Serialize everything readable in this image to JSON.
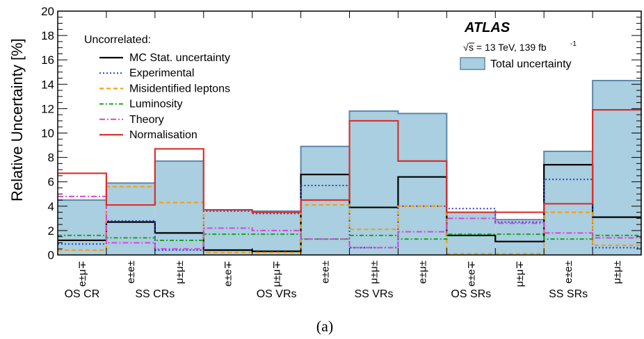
{
  "chart_data": {
    "type": "histogram",
    "ylabel": "Relative Uncertainty [%]",
    "ylim": [
      0,
      20
    ],
    "yticks": [
      "0",
      "2",
      "4",
      "6",
      "8",
      "10",
      "12",
      "14",
      "16",
      "18",
      "20"
    ],
    "bin_labels": [
      "e±μ∓",
      "e±e±",
      "μ±μ±",
      "e±e∓",
      "μ±μ∓",
      "e±e±",
      "μ±μ±",
      "e±μ±",
      "e±e∓",
      "μ±μ∓",
      "e±e±",
      "μ±μ±"
    ],
    "groups": [
      {
        "label": "OS CR",
        "bins": [
          0
        ]
      },
      {
        "label": "SS CRs",
        "bins": [
          1,
          2
        ]
      },
      {
        "label": "OS VRs",
        "bins": [
          3,
          4,
          5
        ]
      },
      {
        "label": "SS VRs",
        "bins": [
          6,
          7
        ]
      },
      {
        "label": "OS SRs",
        "bins": [
          8,
          9
        ]
      },
      {
        "label": "SS SRs",
        "bins": [
          10,
          11
        ]
      }
    ],
    "total": {
      "name": "Total uncertainty",
      "color": "#a9cfe0",
      "edge": "#5f87a8",
      "values": [
        4.5,
        5.9,
        7.7,
        3.7,
        3.6,
        8.9,
        11.8,
        11.6,
        3.5,
        2.9,
        8.5,
        14.3
      ]
    },
    "series": [
      {
        "name": "MC Stat. uncertainty",
        "color": "#000000",
        "dash": "",
        "width": 2.2,
        "values": [
          1.2,
          2.7,
          1.8,
          0.4,
          0.3,
          6.6,
          3.9,
          6.4,
          1.6,
          1.1,
          7.4,
          3.1
        ]
      },
      {
        "name": "Experimental",
        "color": "#2a3fc8",
        "dash": "2,3",
        "width": 2,
        "values": [
          0.9,
          2.8,
          0.4,
          3.6,
          3.4,
          5.7,
          0.6,
          4.0,
          3.8,
          2.7,
          6.2,
          0.6
        ]
      },
      {
        "name": "Misidentified leptons",
        "color": "#ff9900",
        "dash": "6,4",
        "width": 2,
        "values": [
          0.4,
          5.6,
          4.3,
          0.2,
          0.2,
          4.1,
          2.1,
          4.0,
          0.1,
          0.1,
          3.5,
          0.8
        ]
      },
      {
        "name": "Luminosity",
        "color": "#1fa01f",
        "dash": "6,3,2,3",
        "width": 2,
        "values": [
          1.6,
          1.4,
          1.2,
          1.7,
          1.7,
          1.3,
          1.6,
          1.3,
          1.7,
          1.7,
          1.3,
          1.6
        ]
      },
      {
        "name": "Theory",
        "color": "#d943d9",
        "dash": "8,3,2,3",
        "width": 2,
        "values": [
          4.8,
          1.0,
          0.5,
          2.2,
          2.0,
          1.3,
          0.6,
          1.9,
          3.0,
          2.6,
          1.8,
          1.4
        ]
      },
      {
        "name": "Normalisation",
        "color": "#d9302c",
        "dash": "",
        "width": 2.2,
        "values": [
          6.7,
          4.1,
          8.7,
          3.7,
          3.5,
          4.5,
          11.0,
          7.7,
          3.5,
          3.5,
          4.2,
          11.9
        ]
      }
    ],
    "legend_title": "Uncorrelated:",
    "experiment": "ATLAS",
    "energy_label": "s = 13 TeV, 139 fb",
    "energy_superscript": "-1",
    "caption": "(a)"
  }
}
